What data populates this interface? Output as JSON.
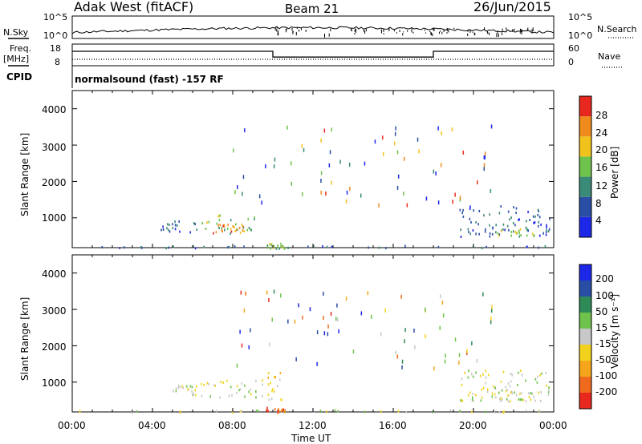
{
  "header": {
    "station": "Adak West (fitACF)",
    "beam": "Beam 21",
    "date": "26/Jun/2015"
  },
  "left_labels": {
    "nsky": "N.Sky",
    "freq_line1": "Freq.",
    "freq_line2": "[MHz]",
    "cpid": "CPID"
  },
  "right_labels": {
    "nsearch": "N.Search",
    "nave": "Nave"
  },
  "cpid_text": "normalsound (fast) -157 RF",
  "axes": {
    "x_label": "Time UT",
    "x_ticks": [
      "00:00",
      "04:00",
      "08:00",
      "12:00",
      "16:00",
      "20:00",
      "00:00"
    ],
    "y_label": "Slant Range [km]",
    "y_ticks": [
      "1000",
      "2000",
      "3000",
      "4000"
    ]
  },
  "power_scale": {
    "title": "Power [dB]",
    "labels": [
      "4",
      "8",
      "12",
      "16",
      "20",
      "24",
      "28"
    ],
    "colors": [
      "#1d27e8",
      "#2a4ea6",
      "#3a8a78",
      "#6fc24b",
      "#f2c21c",
      "#f08a1c",
      "#e8281e"
    ]
  },
  "velocity_scale": {
    "title": "Velocity [m s⁻¹]",
    "labels": [
      "-200",
      "-100",
      "-50",
      "-15",
      "15",
      "50",
      "100",
      "200"
    ],
    "colors": [
      "#e8281e",
      "#f06a1e",
      "#f5a51c",
      "#f2d21c",
      "#c8c8c8",
      "#6fc24b",
      "#2e8b57",
      "#2a4ea6",
      "#1d27e8"
    ]
  },
  "chart_data": [
    {
      "type": "line",
      "panel": "noise",
      "left_axis_ticks": [
        "10^5",
        "10^0"
      ],
      "right_axis_ticks": [
        "10^5",
        "10^0"
      ]
    },
    {
      "type": "line",
      "panel": "frequency-nave",
      "left_axis_ticks": [
        "18",
        "8"
      ],
      "right_axis_ticks": [
        "60",
        "0"
      ],
      "frequency_segments": [
        {
          "start_h": 0,
          "end_h": 10,
          "freq_mhz": 15.5
        },
        {
          "start_h": 10,
          "end_h": 18,
          "freq_mhz": 12.5
        },
        {
          "start_h": 18,
          "end_h": 24,
          "freq_mhz": 15.5
        }
      ]
    },
    {
      "type": "scatter",
      "panel": "power",
      "x_unit": "hours UT",
      "y_unit": "km",
      "xlim": [
        0,
        24
      ],
      "ylim": [
        180,
        4500
      ],
      "clusters": [
        {
          "t0": 0.2,
          "t1": 24,
          "r0": 190,
          "r1": 260,
          "level": 1
        },
        {
          "t0": 4.3,
          "t1": 6.2,
          "r0": 600,
          "r1": 950,
          "level": 1
        },
        {
          "t0": 6.4,
          "t1": 9.2,
          "r0": 600,
          "r1": 1100,
          "level": 3
        },
        {
          "t0": 7.0,
          "t1": 8.5,
          "r0": 600,
          "r1": 850,
          "level": 5
        },
        {
          "t0": 9.6,
          "t1": 10.6,
          "r0": 180,
          "r1": 320,
          "level": 3
        },
        {
          "t0": 19.3,
          "t1": 23.8,
          "r0": 500,
          "r1": 1350,
          "level": 1
        },
        {
          "t0": 21.0,
          "t1": 23.0,
          "r0": 500,
          "r1": 750,
          "level": 3
        }
      ]
    },
    {
      "type": "scatter",
      "panel": "velocity",
      "x_unit": "hours UT",
      "y_unit": "km",
      "xlim": [
        0,
        24
      ],
      "ylim": [
        180,
        4500
      ],
      "clusters": [
        {
          "t0": 0.2,
          "t1": 24,
          "r0": 190,
          "r1": 260,
          "level": 4
        },
        {
          "t0": 5.0,
          "t1": 6.2,
          "r0": 650,
          "r1": 950,
          "level": 4
        },
        {
          "t0": 6.4,
          "t1": 9.2,
          "r0": 600,
          "r1": 1100,
          "level": 4
        },
        {
          "t0": 9.4,
          "t1": 10.4,
          "r0": 500,
          "r1": 1300,
          "level": 3
        },
        {
          "t0": 9.6,
          "t1": 10.6,
          "r0": 180,
          "r1": 320,
          "level": 1
        },
        {
          "t0": 19.3,
          "t1": 23.8,
          "r0": 500,
          "r1": 1350,
          "level": 4
        },
        {
          "t0": 21.0,
          "t1": 23.0,
          "r0": 500,
          "r1": 750,
          "level": 4
        }
      ]
    }
  ]
}
